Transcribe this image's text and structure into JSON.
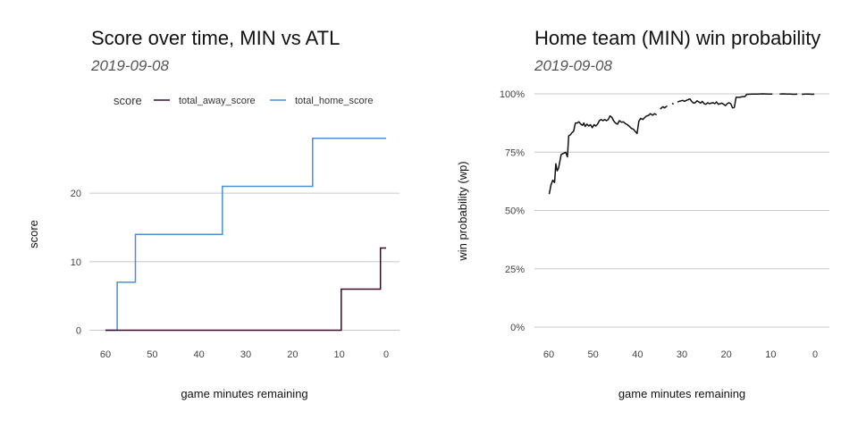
{
  "chart_data": [
    {
      "type": "line",
      "title": "Score over time, MIN vs ATL",
      "subtitle": "2019-09-08",
      "xlabel": "game minutes remaining",
      "ylabel": "score",
      "xlim": [
        60,
        0
      ],
      "ylim": [
        0,
        28
      ],
      "x_ticks": [
        60,
        50,
        40,
        30,
        20,
        10,
        0
      ],
      "y_ticks": [
        0,
        10,
        20
      ],
      "grid": "horizontal",
      "legend": {
        "title": "score",
        "position": "top"
      },
      "series": [
        {
          "name": "total_away_score",
          "color": "#3b0a2a",
          "step": true,
          "points": [
            [
              60,
              0
            ],
            [
              9.6,
              0
            ],
            [
              9.6,
              6
            ],
            [
              1.2,
              6
            ],
            [
              1.2,
              12
            ],
            [
              0,
              12
            ]
          ]
        },
        {
          "name": "total_home_score",
          "color": "#4a90d9",
          "step": true,
          "points": [
            [
              60,
              0
            ],
            [
              57.5,
              0
            ],
            [
              57.5,
              7
            ],
            [
              53.6,
              7
            ],
            [
              53.6,
              14
            ],
            [
              35,
              14
            ],
            [
              35,
              21
            ],
            [
              15.7,
              21
            ],
            [
              15.7,
              28
            ],
            [
              0,
              28
            ]
          ]
        }
      ]
    },
    {
      "type": "line",
      "title": "Home team (MIN) win probability",
      "subtitle": "2019-09-08",
      "xlabel": "game minutes remaining",
      "ylabel": "win probability (wp)",
      "xlim": [
        60,
        0
      ],
      "ylim": [
        0,
        1
      ],
      "x_ticks": [
        60,
        50,
        40,
        30,
        20,
        10,
        0
      ],
      "y_ticks": [
        0,
        0.25,
        0.5,
        0.75,
        1
      ],
      "y_tick_labels": [
        "0%",
        "25%",
        "50%",
        "75%",
        "100%"
      ],
      "grid": "horizontal",
      "series": [
        {
          "name": "wp",
          "color": "#111111",
          "segments": [
            [
              [
                59.9,
                0.57
              ],
              [
                59.5,
                0.61
              ],
              [
                59.1,
                0.63
              ],
              [
                58.7,
                0.62
              ],
              [
                58.4,
                0.7
              ],
              [
                58.1,
                0.67
              ],
              [
                57.8,
                0.68
              ],
              [
                57.5,
                0.71
              ],
              [
                57.2,
                0.74
              ],
              [
                56.7,
                0.745
              ],
              [
                56.2,
                0.75
              ],
              [
                55.8,
                0.73
              ],
              [
                55.5,
                0.82
              ],
              [
                55.1,
                0.825
              ],
              [
                54.7,
                0.835
              ],
              [
                54.4,
                0.84
              ],
              [
                54.0,
                0.875
              ],
              [
                53.6,
                0.875
              ],
              [
                53.2,
                0.88
              ],
              [
                52.8,
                0.87
              ],
              [
                52.4,
                0.865
              ],
              [
                52.1,
                0.875
              ],
              [
                51.8,
                0.86
              ],
              [
                51.4,
                0.87
              ],
              [
                51.0,
                0.862
              ],
              [
                50.6,
                0.868
              ],
              [
                50.2,
                0.855
              ],
              [
                49.8,
                0.868
              ],
              [
                49.4,
                0.862
              ],
              [
                49.0,
                0.87
              ],
              [
                48.6,
                0.885
              ],
              [
                48.2,
                0.89
              ],
              [
                47.8,
                0.885
              ],
              [
                47.4,
                0.89
              ],
              [
                47.0,
                0.885
              ],
              [
                46.6,
                0.89
              ],
              [
                46.2,
                0.905
              ],
              [
                45.8,
                0.9
              ],
              [
                45.4,
                0.885
              ],
              [
                45.0,
                0.875
              ],
              [
                44.5,
                0.87
              ],
              [
                44.1,
                0.885
              ],
              [
                43.6,
                0.878
              ],
              [
                43.2,
                0.88
              ],
              [
                42.7,
                0.872
              ],
              [
                42.3,
                0.868
              ],
              [
                41.8,
                0.86
              ],
              [
                41.4,
                0.852
              ],
              [
                40.9,
                0.848
              ],
              [
                40.5,
                0.838
              ],
              [
                40.1,
                0.83
              ],
              [
                39.7,
                0.882
              ],
              [
                39.3,
                0.895
              ],
              [
                38.8,
                0.89
              ],
              [
                38.4,
                0.898
              ],
              [
                38.0,
                0.905
              ],
              [
                37.5,
                0.908
              ],
              [
                37.1,
                0.915
              ],
              [
                36.6,
                0.908
              ],
              [
                36.2,
                0.915
              ],
              [
                35.7,
                0.91
              ]
            ],
            [
              [
                34.9,
                0.935
              ],
              [
                34.6,
                0.94
              ],
              [
                34.3,
                0.945
              ],
              [
                33.9,
                0.94
              ],
              [
                33.6,
                0.945
              ],
              [
                33.3,
                0.948
              ]
            ],
            [
              [
                32.2,
                0.96
              ],
              [
                31.9,
                0.955
              ]
            ],
            [
              [
                31.0,
                0.965
              ],
              [
                30.6,
                0.968
              ],
              [
                30.2,
                0.97
              ],
              [
                29.8,
                0.972
              ],
              [
                29.4,
                0.968
              ],
              [
                29.0,
                0.972
              ],
              [
                28.6,
                0.975
              ],
              [
                28.2,
                0.978
              ],
              [
                27.8,
                0.968
              ],
              [
                27.4,
                0.96
              ],
              [
                27.0,
                0.962
              ],
              [
                26.6,
                0.97
              ],
              [
                26.2,
                0.965
              ],
              [
                25.8,
                0.96
              ],
              [
                25.4,
                0.968
              ],
              [
                25.0,
                0.958
              ],
              [
                24.6,
                0.955
              ],
              [
                24.2,
                0.962
              ],
              [
                23.8,
                0.958
              ],
              [
                23.4,
                0.96
              ],
              [
                23.0,
                0.962
              ],
              [
                22.6,
                0.958
              ],
              [
                22.2,
                0.965
              ],
              [
                21.8,
                0.955
              ],
              [
                21.4,
                0.958
              ],
              [
                21.0,
                0.96
              ],
              [
                20.6,
                0.955
              ],
              [
                20.2,
                0.95
              ],
              [
                19.8,
                0.958
              ],
              [
                19.4,
                0.962
              ],
              [
                19.0,
                0.958
              ],
              [
                18.6,
                0.94
              ],
              [
                18.2,
                0.942
              ],
              [
                17.8,
                0.985
              ],
              [
                17.4,
                0.985
              ],
              [
                17.0,
                0.985
              ],
              [
                16.6,
                0.987
              ],
              [
                16.2,
                0.988
              ],
              [
                15.8,
                0.988
              ],
              [
                15.4,
                0.998
              ],
              [
                15.0,
                0.998
              ],
              [
                14.2,
                0.999
              ],
              [
                13.0,
                0.999
              ],
              [
                11.8,
                1.0
              ],
              [
                10.5,
                0.999
              ],
              [
                9.6,
                0.999
              ]
            ],
            [
              [
                8.0,
                0.999
              ],
              [
                7.2,
                1.0
              ],
              [
                6.4,
                0.999
              ],
              [
                5.6,
                0.999
              ],
              [
                4.8,
                0.998
              ],
              [
                4.0,
                0.999
              ]
            ],
            [
              [
                3.0,
                0.998
              ],
              [
                2.2,
                0.999
              ],
              [
                1.4,
                0.999
              ],
              [
                0.6,
                0.998
              ],
              [
                0.2,
                0.999
              ]
            ]
          ]
        }
      ]
    }
  ]
}
